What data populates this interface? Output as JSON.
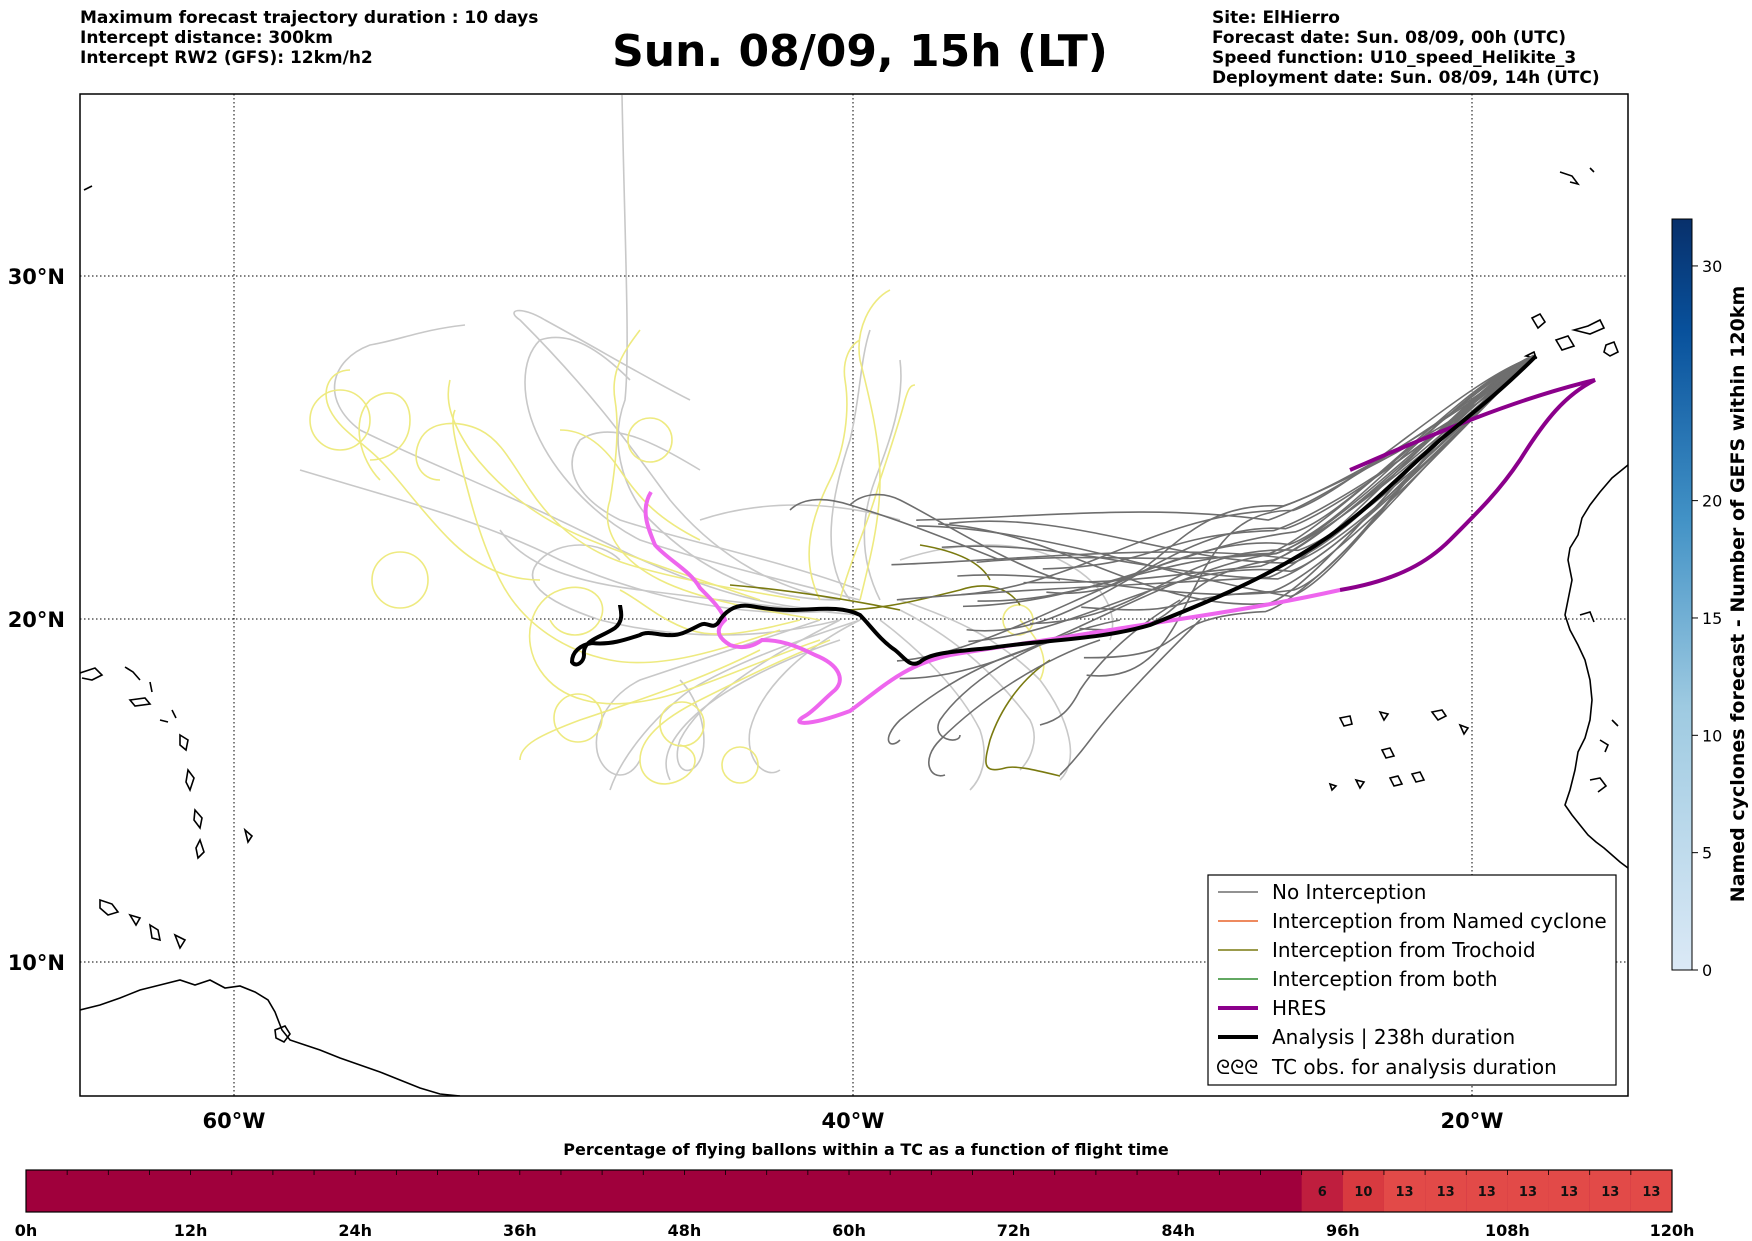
{
  "header": {
    "left": [
      "Maximum forecast trajectory duration : 10 days",
      "Intercept distance: 300km",
      "Intercept RW2 (GFS):  12km/h2"
    ],
    "title": "Sun. 08/09, 15h (LT)",
    "right": [
      "Site: ElHierro",
      "Forecast date: Sun. 08/09, 00h (UTC)",
      "Speed function: U10_speed_Helikite_3",
      "Deployment date: Sun. 08/09, 14h (UTC)"
    ]
  },
  "map": {
    "lon_range": [
      -65,
      15
    ],
    "lat_range": [
      5,
      34
    ],
    "lon_ticks": [
      {
        "lon": -60,
        "label": "60°W"
      },
      {
        "lon": -40,
        "label": "40°W"
      },
      {
        "lon": -20,
        "label": "20°W"
      }
    ],
    "lat_ticks": [
      {
        "lat": 30,
        "label": "30°N"
      },
      {
        "lat": 20,
        "label": "20°N"
      },
      {
        "lat": 10,
        "label": "10°N"
      }
    ],
    "grid": "dotted",
    "colors": {
      "no_interception": "#6e6e6e",
      "gefs_faded": "#c8c8c8",
      "trochoid_faded": "#eeea80",
      "named_cyclone": "#e8642a",
      "trochoid": "#7a7a10",
      "both": "#2e8b2e",
      "hres": "#8b008b",
      "hres_faded": "#ee66ee",
      "analysis": "#000000"
    }
  },
  "legend": {
    "placement": "lower-right",
    "items": [
      {
        "label": "No Interception",
        "kind": "no-interception"
      },
      {
        "label": "Interception from Named cyclone",
        "kind": "named-cyclone"
      },
      {
        "label": "Interception from Trochoid",
        "kind": "trochoid"
      },
      {
        "label": "Interception from both",
        "kind": "both"
      },
      {
        "label": "HRES",
        "kind": "hres"
      },
      {
        "label": "Analysis | 238h duration",
        "kind": "analysis"
      },
      {
        "label": "TC obs. for analysis duration",
        "kind": "tc-obs",
        "symbol": "ᘓᘓᘓ"
      }
    ]
  },
  "colorbar": {
    "label": "Named cyclones forecast - Number of GEFS within 120km",
    "min": 0,
    "max": 32,
    "ticks": [
      0,
      5,
      10,
      15,
      20,
      30
    ],
    "color_low": "#dbe9f6",
    "color_high": "#08306b"
  },
  "timeline": {
    "title": "Percentage of flying ballons within a TC as a function of flight time",
    "max_hours": 120,
    "step_hours": 3,
    "ticks": [
      "0h",
      "12h",
      "24h",
      "36h",
      "48h",
      "60h",
      "72h",
      "84h",
      "96h",
      "108h",
      "120h"
    ],
    "base_color": "#a0003c",
    "values": [
      {
        "hour": 93,
        "value": "6",
        "color": "#bf1e3e"
      },
      {
        "hour": 96,
        "value": "10",
        "color": "#d83a40"
      },
      {
        "hour": 99,
        "value": "13",
        "color": "#e24a48"
      },
      {
        "hour": 102,
        "value": "13",
        "color": "#e24a48"
      },
      {
        "hour": 105,
        "value": "13",
        "color": "#e24a48"
      },
      {
        "hour": 108,
        "value": "13",
        "color": "#e24a48"
      },
      {
        "hour": 111,
        "value": "13",
        "color": "#e24a48"
      },
      {
        "hour": 114,
        "value": "13",
        "color": "#e24a48"
      },
      {
        "hour": 117,
        "value": "13",
        "color": "#e24a48"
      }
    ]
  }
}
